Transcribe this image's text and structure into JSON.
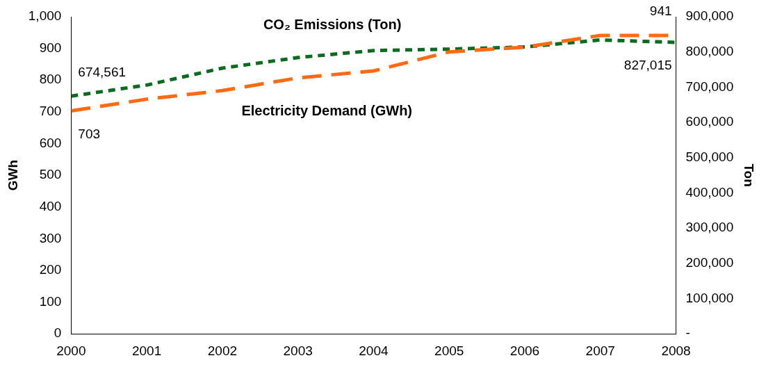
{
  "chart_data": {
    "type": "line",
    "x": [
      2000,
      2001,
      2002,
      2003,
      2004,
      2005,
      2006,
      2007,
      2008
    ],
    "xlim": [
      2000,
      2008
    ],
    "xticks": [
      2000,
      2001,
      2002,
      2003,
      2004,
      2005,
      2006,
      2007,
      2008
    ],
    "ylabel": "GWh",
    "y2label": "Ton",
    "ylim": [
      0,
      1000
    ],
    "yticks": [
      0,
      100,
      200,
      300,
      400,
      500,
      600,
      700,
      800,
      900,
      {
        "value": 1000,
        "label": "1,000"
      }
    ],
    "y2lim": [
      0,
      900000
    ],
    "y2ticks": [
      {
        "value": 0,
        "label": "-"
      },
      {
        "value": 100000,
        "label": "100,000"
      },
      {
        "value": 200000,
        "label": "200,000"
      },
      {
        "value": 300000,
        "label": "300,000"
      },
      {
        "value": 400000,
        "label": "400,000"
      },
      {
        "value": 500000,
        "label": "500,000"
      },
      {
        "value": 600000,
        "label": "600,000"
      },
      {
        "value": 700000,
        "label": "700,000"
      },
      {
        "value": 800000,
        "label": "800,000"
      },
      {
        "value": 900000,
        "label": "900,000"
      }
    ],
    "grid": false,
    "legend": false,
    "marker": "none",
    "series": [
      {
        "name": "Electricity Demand (GWh)",
        "color": "#ff6a13",
        "line_style": "dashed",
        "values": [
          703,
          740,
          767,
          807,
          829,
          889,
          904,
          941,
          941
        ],
        "value_labels": [
          "703",
          null,
          null,
          null,
          null,
          null,
          null,
          null,
          "941"
        ]
      },
      {
        "name": "CO₂ Emissions (Ton)",
        "color": "#0b6b1e",
        "line_style": "dotted",
        "axis": "y2",
        "values": [
          674561,
          706000,
          754000,
          784000,
          804000,
          808000,
          814000,
          834000,
          827015
        ],
        "value_labels": [
          "674,561",
          null,
          null,
          null,
          null,
          null,
          null,
          null,
          "827,015"
        ]
      }
    ]
  }
}
